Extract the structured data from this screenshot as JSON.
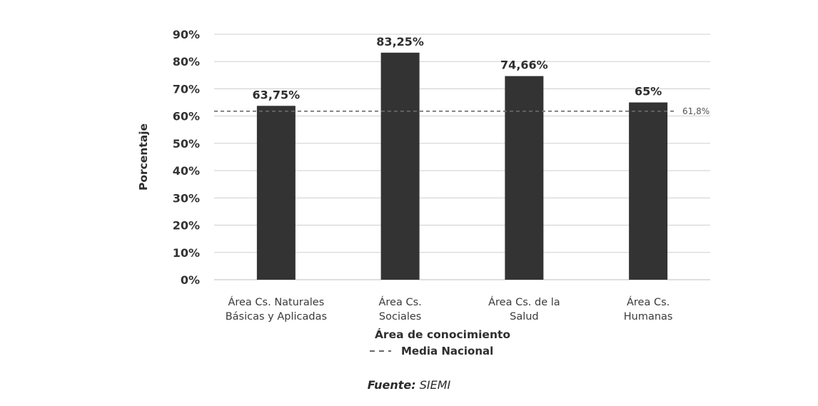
{
  "chart_data": {
    "type": "bar",
    "categories": [
      [
        "Área Cs. Naturales",
        "Básicas y Aplicadas"
      ],
      [
        "Área Cs.",
        "Sociales"
      ],
      [
        "Área Cs. de la",
        "Salud"
      ],
      [
        "Área Cs.",
        "Humanas"
      ]
    ],
    "values": [
      63.75,
      83.25,
      74.66,
      65
    ],
    "data_labels": [
      "63,75%",
      "83,25%",
      "74,66%",
      "65%"
    ],
    "ylim": [
      0,
      90
    ],
    "yticks": [
      0,
      10,
      20,
      30,
      40,
      50,
      60,
      70,
      80,
      90
    ],
    "ytick_labels": [
      "0%",
      "10%",
      "20%",
      "30%",
      "40%",
      "50%",
      "60%",
      "70%",
      "80%",
      "90%"
    ],
    "xlabel": "Área de conocimiento",
    "ylabel": "Porcentaje",
    "grid": true,
    "bar_color": "#333333",
    "reference_line": {
      "value": 61.8,
      "label": "61,8%",
      "style": "dashed",
      "legend": "Media Nacional"
    },
    "legend_position": "bottom"
  },
  "source": {
    "key": "Fuente:",
    "value": "SIEMI"
  }
}
